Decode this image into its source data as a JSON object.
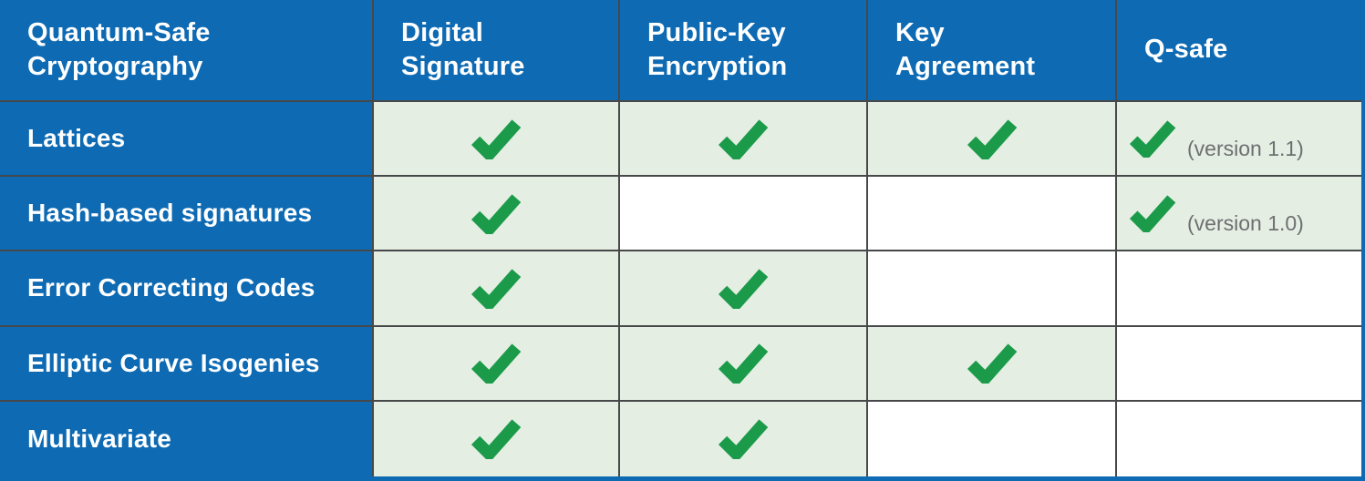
{
  "table": {
    "title": "Quantum-Safe\nCryptography",
    "columns": [
      {
        "key": "digital-signature",
        "label": "Digital\nSignature"
      },
      {
        "key": "public-key-encryption",
        "label": "Public-Key\nEncryption"
      },
      {
        "key": "key-agreement",
        "label": "Key\nAgreement"
      },
      {
        "key": "q-safe",
        "label": "Q-safe"
      }
    ],
    "rows": [
      {
        "label": "Lattices",
        "cells": [
          {
            "check": true
          },
          {
            "check": true
          },
          {
            "check": true
          },
          {
            "check": true,
            "note": "(version 1.1)"
          }
        ]
      },
      {
        "label": "Hash-based signatures",
        "cells": [
          {
            "check": true
          },
          {
            "check": false
          },
          {
            "check": false
          },
          {
            "check": true,
            "note": "(version 1.0)"
          }
        ]
      },
      {
        "label": "Error Correcting Codes",
        "cells": [
          {
            "check": true
          },
          {
            "check": true
          },
          {
            "check": false
          },
          {
            "check": false
          }
        ]
      },
      {
        "label": "Elliptic Curve Isogenies",
        "cells": [
          {
            "check": true
          },
          {
            "check": true
          },
          {
            "check": true
          },
          {
            "check": false
          }
        ]
      },
      {
        "label": "Multivariate",
        "cells": [
          {
            "check": true
          },
          {
            "check": true
          },
          {
            "check": false
          },
          {
            "check": false
          }
        ]
      }
    ],
    "colors": {
      "header_blue": "#0d6ab3",
      "checked_cell_green": "#e5eee3",
      "check_icon_green": "#1b9b4a",
      "gridline": "#47484a",
      "note_text": "#6d6f71"
    }
  }
}
